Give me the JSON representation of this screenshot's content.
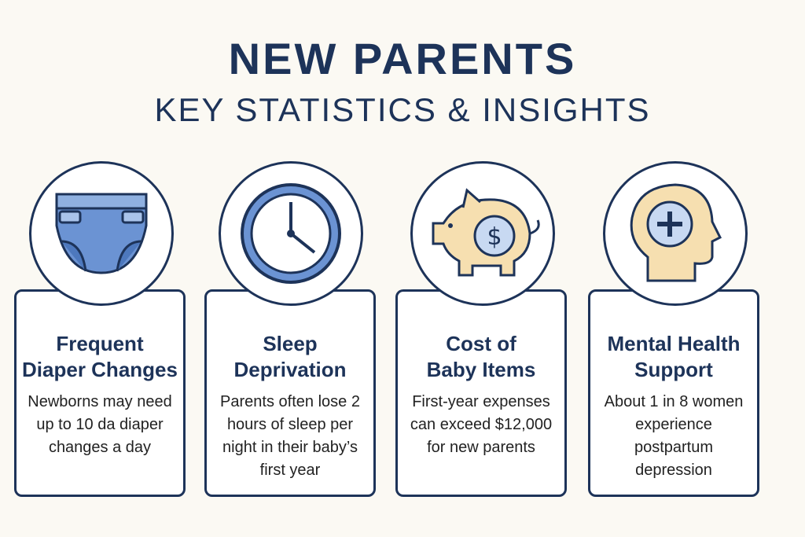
{
  "title": "NEW PARENTS",
  "subtitle": "KEY STATISTICS & INSIGHTS",
  "cards": [
    {
      "icon": "diaper-icon",
      "title_1": "Frequent",
      "title_2": "Diaper Changes",
      "text": "Newborns may need up to 10 da diaper changes a day"
    },
    {
      "icon": "clock-icon",
      "title_1": "Sleep",
      "title_2": "Deprivation",
      "text": "Parents often lose 2 hours of sleep per night in their baby’s first year"
    },
    {
      "icon": "piggy-bank-icon",
      "title_1": "Cost of",
      "title_2": "Baby Items",
      "text": "First-year expenses can exceed $12,000 for new parents"
    },
    {
      "icon": "head-plus-icon",
      "title_1": "Mental Health",
      "title_2": "Support",
      "text": "About 1 in 8 women experience postpartum depression"
    }
  ],
  "colors": {
    "navy": "#1d3359",
    "blue": "#5b86c9",
    "beige": "#f6dfb0",
    "bg": "#fbf9f3"
  }
}
